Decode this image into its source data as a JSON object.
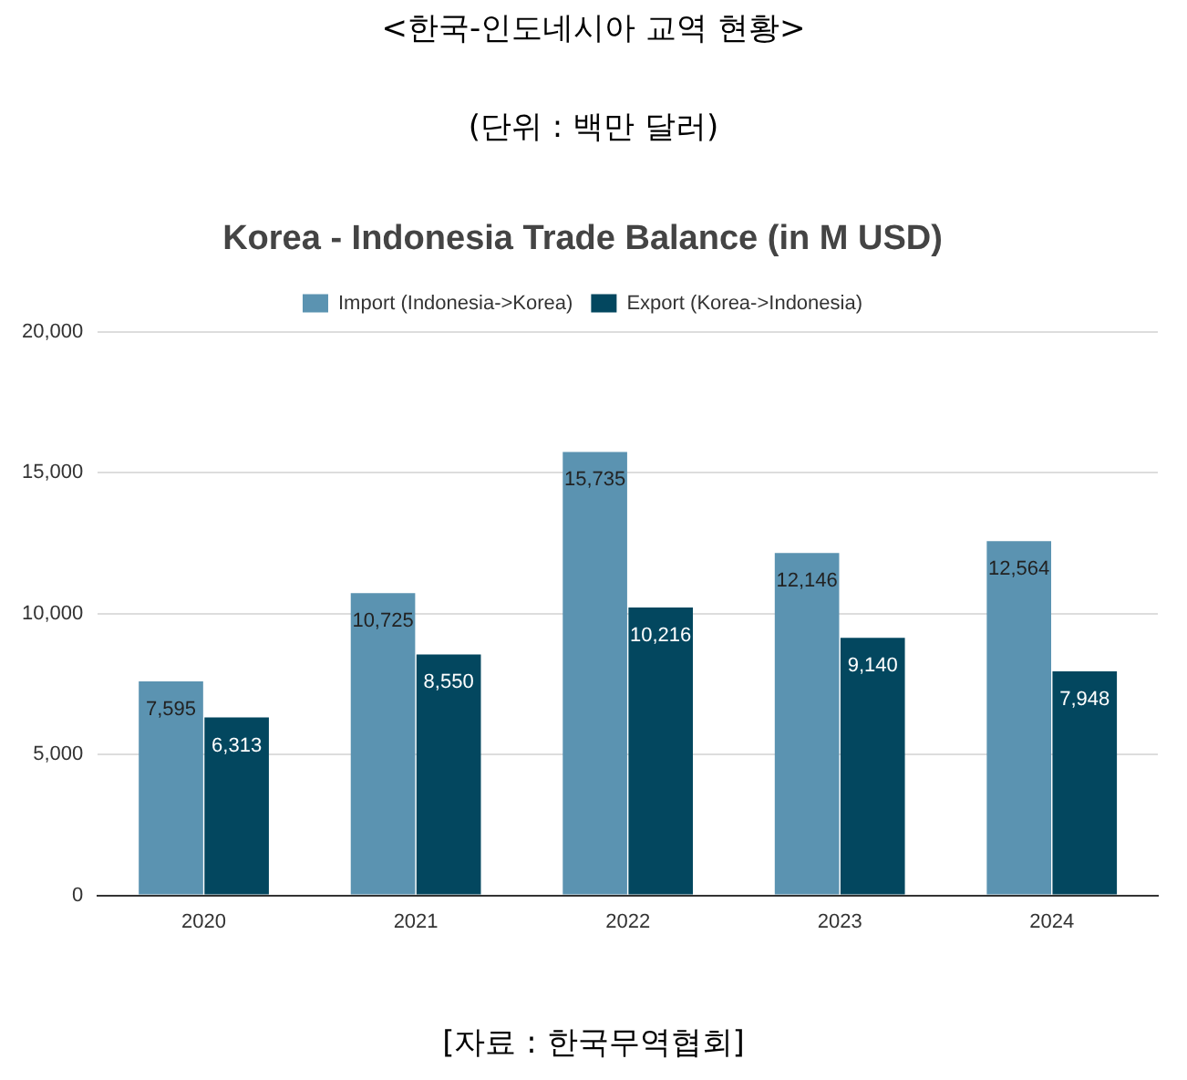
{
  "chart_data": {
    "type": "bar",
    "title": "Korea - Indonesia Trade Balance (in M USD)",
    "annotations": [
      "<한국-인도네시아 교역 현황>",
      "(단위 : 백만 달러)",
      "[자료 : 한국무역협회]"
    ],
    "categories": [
      "2020",
      "2021",
      "2022",
      "2023",
      "2024"
    ],
    "series": [
      {
        "name": "Import (Indonesia->Korea)",
        "color": "#5b93b1",
        "values": [
          7595,
          10725,
          15735,
          12146,
          12564
        ],
        "value_labels": [
          "7,595",
          "10,725",
          "15,735",
          "12,146",
          "12,564"
        ]
      },
      {
        "name": "Export (Korea->Indonesia)",
        "color": "#03475f",
        "values": [
          6313,
          8550,
          10216,
          9140,
          7948
        ],
        "value_labels": [
          "6,313",
          "8,550",
          "10,216",
          "9,140",
          "7,948"
        ]
      }
    ],
    "ylim": [
      0,
      20000
    ],
    "yticks": [
      0,
      {
        "value": 5000,
        "label": "5,000"
      },
      {
        "value": 10000,
        "label": "10,000"
      },
      {
        "value": 15000,
        "label": "15,000"
      },
      {
        "value": 20000,
        "label": "20,000"
      }
    ],
    "grid": "y",
    "legend": "top"
  }
}
